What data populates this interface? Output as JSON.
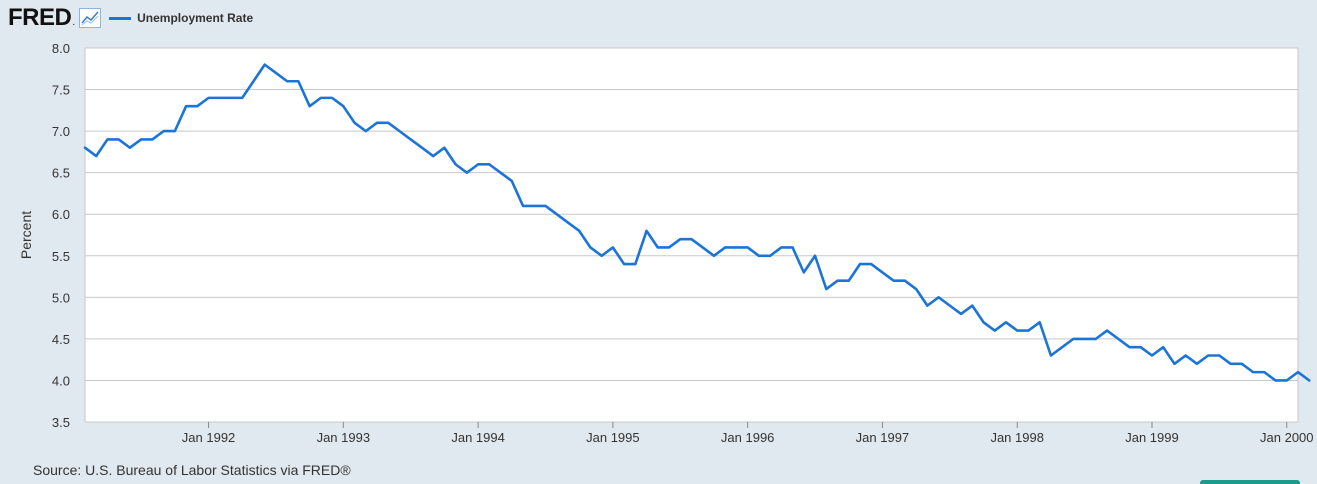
{
  "header": {
    "logo_text": "FRED",
    "logo_mark": ".",
    "icon": "line-chart-icon"
  },
  "legend": {
    "series_label": "Unemployment Rate",
    "color": "#1b74d8"
  },
  "source": "Source: U.S. Bureau of Labor Statistics via FRED®",
  "chart_data": {
    "type": "line",
    "title": "",
    "ylabel": "Percent",
    "xlabel": "",
    "ylim": [
      3.5,
      8.0
    ],
    "yticks": [
      "3.5",
      "4.0",
      "4.5",
      "5.0",
      "5.5",
      "6.0",
      "6.5",
      "7.0",
      "7.5",
      "8.0"
    ],
    "xlim": [
      "1991-02",
      "2000-02"
    ],
    "xticks": [
      {
        "label": "Jan 1992",
        "date": "1992-01"
      },
      {
        "label": "Jan 1993",
        "date": "1993-01"
      },
      {
        "label": "Jan 1994",
        "date": "1994-01"
      },
      {
        "label": "Jan 1995",
        "date": "1995-01"
      },
      {
        "label": "Jan 1996",
        "date": "1996-01"
      },
      {
        "label": "Jan 1997",
        "date": "1997-01"
      },
      {
        "label": "Jan 1998",
        "date": "1998-01"
      },
      {
        "label": "Jan 1999",
        "date": "1999-01"
      },
      {
        "label": "Jan 2000",
        "date": "2000-01"
      }
    ],
    "grid": true,
    "legend_position": "top-left",
    "series": [
      {
        "name": "Unemployment Rate",
        "color": "#1b74d8",
        "start": "1991-02",
        "frequency": "monthly",
        "values": [
          6.8,
          6.7,
          6.9,
          6.9,
          6.8,
          6.9,
          6.9,
          7.0,
          7.0,
          7.3,
          7.3,
          7.4,
          7.4,
          7.4,
          7.4,
          7.6,
          7.8,
          7.7,
          7.6,
          7.6,
          7.3,
          7.4,
          7.4,
          7.3,
          7.1,
          7.0,
          7.1,
          7.1,
          7.0,
          6.9,
          6.8,
          6.7,
          6.8,
          6.6,
          6.5,
          6.6,
          6.6,
          6.5,
          6.4,
          6.1,
          6.1,
          6.1,
          6.0,
          5.9,
          5.8,
          5.6,
          5.5,
          5.6,
          5.4,
          5.4,
          5.8,
          5.6,
          5.6,
          5.7,
          5.7,
          5.6,
          5.5,
          5.6,
          5.6,
          5.6,
          5.5,
          5.5,
          5.6,
          5.6,
          5.3,
          5.5,
          5.1,
          5.2,
          5.2,
          5.4,
          5.4,
          5.3,
          5.2,
          5.2,
          5.1,
          4.9,
          5.0,
          4.9,
          4.8,
          4.9,
          4.7,
          4.6,
          4.7,
          4.6,
          4.6,
          4.7,
          4.3,
          4.4,
          4.5,
          4.5,
          4.5,
          4.6,
          4.5,
          4.4,
          4.4,
          4.3,
          4.4,
          4.2,
          4.3,
          4.2,
          4.3,
          4.3,
          4.2,
          4.2,
          4.1,
          4.1,
          4.0,
          4.0,
          4.1,
          4.0
        ]
      }
    ]
  }
}
